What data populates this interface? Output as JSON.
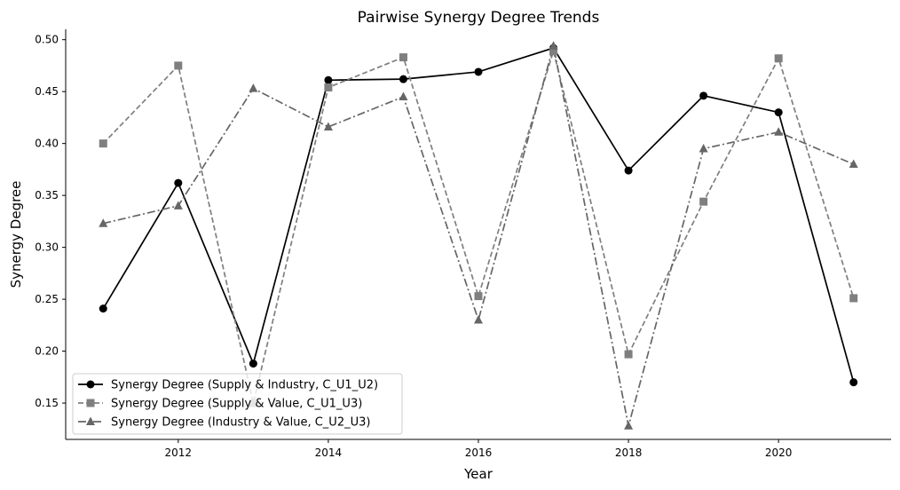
{
  "chart_data": {
    "type": "line",
    "title": "Pairwise Synergy Degree Trends",
    "xlabel": "Year",
    "ylabel": "Synergy Degree",
    "xlim": [
      2010.5,
      2021.5
    ],
    "ylim": [
      0.115,
      0.51
    ],
    "x_ticks": [
      2012,
      2014,
      2016,
      2018,
      2020
    ],
    "y_ticks": [
      0.15,
      0.2,
      0.25,
      0.3,
      0.35,
      0.4,
      0.45,
      0.5
    ],
    "y_tick_labels": [
      "0.15",
      "0.20",
      "0.25",
      "0.30",
      "0.35",
      "0.40",
      "0.45",
      "0.50"
    ],
    "grid": false,
    "legend_position": "lower-left",
    "x": [
      2011,
      2012,
      2013,
      2014,
      2015,
      2016,
      2017,
      2018,
      2019,
      2020,
      2021
    ],
    "series": [
      {
        "name": "Synergy Degree (Supply & Industry, C_U1_U2)",
        "values": [
          0.241,
          0.362,
          0.188,
          0.461,
          0.462,
          0.469,
          0.492,
          0.374,
          0.446,
          0.43,
          0.17
        ],
        "color": "#000000",
        "dash": "solid",
        "marker": "circle"
      },
      {
        "name": "Synergy Degree (Supply & Value, C_U1_U3)",
        "values": [
          0.4,
          0.475,
          0.15,
          0.454,
          0.483,
          0.253,
          0.489,
          0.197,
          0.344,
          0.482,
          0.251
        ],
        "color": "#7f7f7f",
        "dash": "dashed",
        "marker": "square"
      },
      {
        "name": "Synergy Degree (Industry & Value, C_U2_U3)",
        "values": [
          0.323,
          0.34,
          0.453,
          0.416,
          0.445,
          0.23,
          0.494,
          0.128,
          0.395,
          0.411,
          0.38
        ],
        "color": "#666666",
        "dash": "dashdot",
        "marker": "triangle"
      }
    ]
  }
}
